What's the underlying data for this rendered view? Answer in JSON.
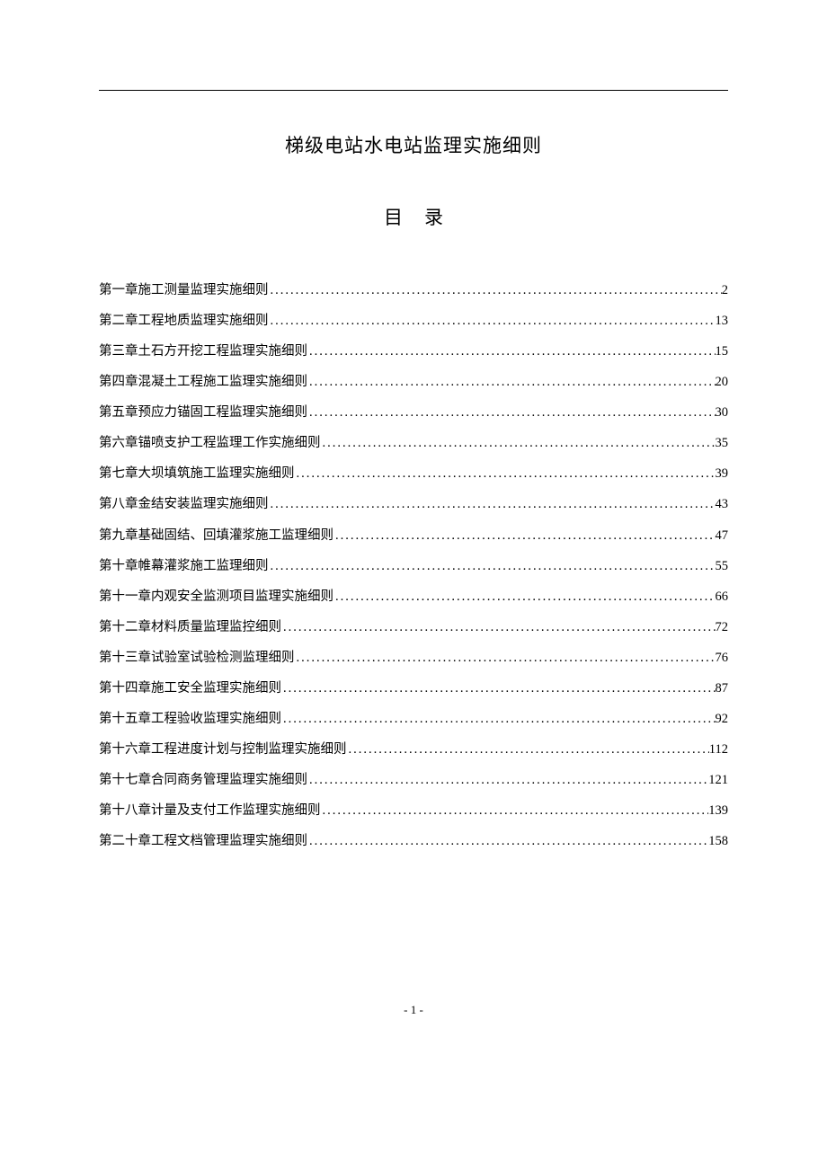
{
  "document": {
    "title": "梯级电站水电站监理实施细则",
    "subtitle": "目录",
    "page_number": "- 1 -",
    "colors": {
      "text": "#000000",
      "background": "#ffffff",
      "line": "#000000"
    },
    "typography": {
      "title_fontsize": 21,
      "body_fontsize": 14.5,
      "font_family": "SimSun"
    }
  },
  "toc": {
    "entries": [
      {
        "chapter": "第一章",
        "name": "施工测量监理实施细则",
        "page": "2"
      },
      {
        "chapter": "第二章",
        "name": "工程地质监理实施细则",
        "page": "13"
      },
      {
        "chapter": "第三章",
        "name": "土石方开挖工程监理实施细则",
        "page": "15"
      },
      {
        "chapter": "第四章",
        "name": "混凝土工程施工监理实施细则",
        "page": "20"
      },
      {
        "chapter": "第五章",
        "name": "预应力锚固工程监理实施细则",
        "page": "30"
      },
      {
        "chapter": "第六章",
        "name": "锚喷支护工程监理工作实施细则",
        "page": "35"
      },
      {
        "chapter": "第七章",
        "name": "大坝填筑施工监理实施细则",
        "page": "39"
      },
      {
        "chapter": "第八章",
        "name": "金结安装监理实施细则",
        "page": "43"
      },
      {
        "chapter": "第九章",
        "name": "基础固结、回填灌浆施工监理细则",
        "page": "47"
      },
      {
        "chapter": "第十章",
        "name": "帷幕灌浆施工监理细则",
        "page": "55"
      },
      {
        "chapter": "第十一章",
        "name": "内观安全监测项目监理实施细则",
        "page": "66"
      },
      {
        "chapter": "第十二章",
        "name": "材料质量监理监控细则",
        "page": "72"
      },
      {
        "chapter": "第十三章",
        "name": "试验室试验检测监理细则",
        "page": "76"
      },
      {
        "chapter": "第十四章",
        "name": "施工安全监理实施细则",
        "page": "87"
      },
      {
        "chapter": "第十五章",
        "name": "工程验收监理实施细则",
        "page": "92"
      },
      {
        "chapter": "第十六章",
        "name": "工程进度计划与控制监理实施细则",
        "page": "112"
      },
      {
        "chapter": "第十七章",
        "name": "合同商务管理监理实施细则",
        "page": "121"
      },
      {
        "chapter": "第十八章",
        "name": "计量及支付工作监理实施细则",
        "page": "139"
      },
      {
        "chapter": "第二十章",
        "name": "工程文档管理监理实施细则",
        "page": "158"
      }
    ]
  }
}
